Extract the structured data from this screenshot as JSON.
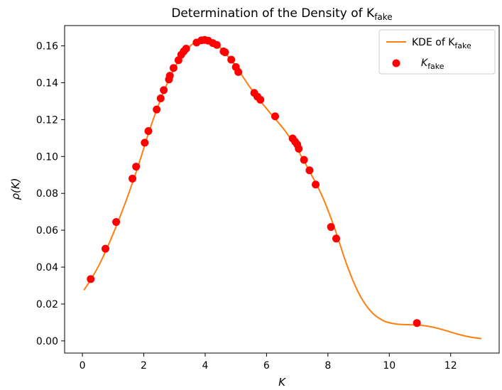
{
  "chart_data": {
    "type": "line",
    "title": "Determination of the Density of K",
    "title_subscript": "fake",
    "xlabel": "K",
    "ylabel": "ρ(K)",
    "xlim": [
      -0.58,
      13.58
    ],
    "ylim": [
      -0.0066,
      0.171
    ],
    "x_ticks": [
      0,
      2,
      4,
      6,
      8,
      10,
      12
    ],
    "x_tick_labels": [
      "0",
      "2",
      "4",
      "6",
      "8",
      "10",
      "12"
    ],
    "y_ticks": [
      0.0,
      0.02,
      0.04,
      0.06,
      0.08,
      0.1,
      0.12,
      0.14,
      0.16
    ],
    "y_tick_labels": [
      "0.00",
      "0.02",
      "0.04",
      "0.06",
      "0.08",
      "0.10",
      "0.12",
      "0.14",
      "0.16"
    ],
    "grid": false,
    "legend_position": "top-right",
    "series": [
      {
        "name": "KDE of K",
        "name_subscript": "fake",
        "kind": "line",
        "color": "#ff7f0e",
        "x": [
          0.05,
          0.3,
          0.6,
          1.0,
          1.4,
          1.8,
          2.2,
          2.6,
          3.0,
          3.4,
          3.7,
          4.0,
          4.3,
          4.6,
          5.0,
          5.4,
          5.8,
          6.2,
          6.6,
          7.0,
          7.4,
          7.8,
          8.2,
          8.6,
          9.0,
          9.4,
          9.8,
          10.2,
          10.6,
          11.0,
          11.4,
          11.8,
          12.2,
          12.6,
          13.0
        ],
        "y": [
          0.0275,
          0.034,
          0.043,
          0.058,
          0.075,
          0.094,
          0.115,
          0.133,
          0.148,
          0.158,
          0.162,
          0.163,
          0.162,
          0.157,
          0.149,
          0.139,
          0.13,
          0.122,
          0.114,
          0.104,
          0.092,
          0.079,
          0.062,
          0.042,
          0.026,
          0.016,
          0.011,
          0.0092,
          0.0088,
          0.0085,
          0.0075,
          0.0058,
          0.0038,
          0.0022,
          0.0012
        ]
      },
      {
        "name": "K",
        "name_subscript": "fake",
        "kind": "scatter",
        "color": "#ff0000",
        "x": [
          0.27,
          0.75,
          1.1,
          1.63,
          1.75,
          2.03,
          2.15,
          2.42,
          2.55,
          2.65,
          2.82,
          2.85,
          2.97,
          3.13,
          3.22,
          3.3,
          3.38,
          3.72,
          3.88,
          3.98,
          4.1,
          4.25,
          4.38,
          4.6,
          4.65,
          4.85,
          5.0,
          5.08,
          5.6,
          5.7,
          5.8,
          6.28,
          6.85,
          6.93,
          7.0,
          7.05,
          7.22,
          7.4,
          7.6,
          8.1,
          8.27,
          10.9
        ],
        "y": [
          0.0335,
          0.05,
          0.0645,
          0.088,
          0.0945,
          0.1075,
          0.1138,
          0.1255,
          0.1315,
          0.136,
          0.1418,
          0.1438,
          0.148,
          0.1522,
          0.1552,
          0.157,
          0.1585,
          0.1618,
          0.163,
          0.1632,
          0.1628,
          0.1615,
          0.1605,
          0.157,
          0.1565,
          0.1525,
          0.1485,
          0.1458,
          0.1345,
          0.1325,
          0.1308,
          0.1218,
          0.1098,
          0.108,
          0.1065,
          0.1042,
          0.0982,
          0.0925,
          0.0848,
          0.0618,
          0.0555,
          0.0097
        ]
      }
    ]
  }
}
